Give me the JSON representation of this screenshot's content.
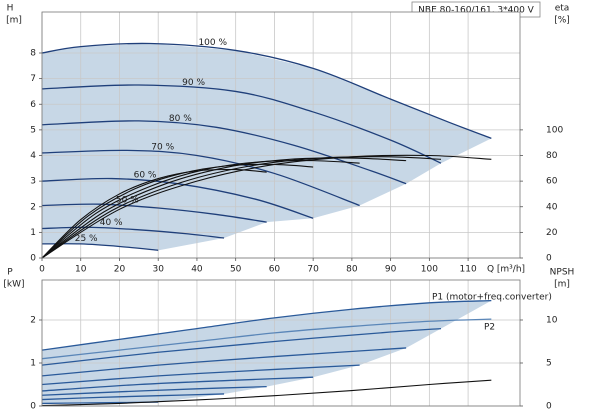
{
  "chart_data": [
    {
      "type": "line",
      "title": "NBE 80-160/161, 3*400 V",
      "ylabel": "H",
      "yunit": "[m]",
      "y2label": "eta",
      "y2unit": "[%]",
      "xlabel": "Q [m³/h]",
      "xlim": [
        0,
        123.4
      ],
      "xticks": [
        0,
        10,
        20,
        30,
        40,
        50,
        60,
        70,
        80,
        90,
        100,
        110
      ],
      "ylim": [
        0,
        9.6
      ],
      "yticks": [
        0,
        1,
        2,
        3,
        4,
        5,
        6,
        7,
        8
      ],
      "y2lim": [
        0,
        192
      ],
      "y2ticks": [
        0,
        20,
        40,
        60,
        80,
        100
      ],
      "grid": true,
      "envelope": [
        0,
        1,
        2,
        3,
        4,
        5,
        6,
        7
      ],
      "envelope_color": "#c7d7e6",
      "series": [
        {
          "name": "100 %",
          "color": "#1f3f7a",
          "x": [
            0,
            10,
            28,
            50,
            70,
            90,
            105,
            116
          ],
          "values": [
            8.0,
            8.25,
            8.37,
            8.1,
            7.4,
            6.2,
            5.3,
            4.67
          ]
        },
        {
          "name": "90 %",
          "color": "#1f3f7a",
          "x": [
            0,
            25,
            50,
            70,
            90,
            103
          ],
          "values": [
            6.6,
            6.75,
            6.5,
            5.7,
            4.6,
            3.7
          ]
        },
        {
          "name": "80 %",
          "color": "#1f3f7a",
          "x": [
            0,
            25,
            45,
            65,
            85,
            94
          ],
          "values": [
            5.2,
            5.35,
            5.1,
            4.4,
            3.4,
            2.9
          ]
        },
        {
          "name": "70 %",
          "color": "#1f3f7a",
          "x": [
            0,
            22,
            40,
            60,
            82
          ],
          "values": [
            4.1,
            4.2,
            4.0,
            3.3,
            2.05
          ]
        },
        {
          "name": "60 %",
          "color": "#1f3f7a",
          "x": [
            0,
            18,
            35,
            55,
            70
          ],
          "values": [
            3.0,
            3.1,
            2.9,
            2.3,
            1.55
          ]
        },
        {
          "name": "50 %",
          "color": "#1f3f7a",
          "x": [
            0,
            15,
            30,
            45,
            58
          ],
          "values": [
            2.05,
            2.1,
            1.95,
            1.7,
            1.4
          ]
        },
        {
          "name": "40 %",
          "color": "#1f3f7a",
          "x": [
            0,
            12,
            25,
            37,
            47
          ],
          "values": [
            1.15,
            1.2,
            1.1,
            0.95,
            0.78
          ]
        },
        {
          "name": "25 %",
          "color": "#1f3f7a",
          "x": [
            0,
            10,
            20,
            30
          ],
          "values": [
            0.55,
            0.55,
            0.45,
            0.3
          ]
        },
        {
          "color": "#111111",
          "axis": "y2",
          "x": [
            0,
            20,
            40,
            60,
            80,
            100,
            116
          ],
          "values": [
            0,
            38,
            60,
            73,
            79,
            80,
            77
          ]
        },
        {
          "color": "#111111",
          "axis": "y2",
          "x": [
            0,
            18,
            36,
            54,
            72,
            90,
            103
          ],
          "values": [
            0,
            37,
            59,
            72,
            78,
            79,
            77
          ]
        },
        {
          "color": "#111111",
          "axis": "y2",
          "x": [
            0,
            16,
            32,
            48,
            64,
            80,
            94
          ],
          "values": [
            0,
            36,
            58,
            71,
            77,
            78,
            76
          ]
        },
        {
          "color": "#111111",
          "axis": "y2",
          "x": [
            0,
            14,
            28,
            42,
            56,
            70,
            82
          ],
          "values": [
            0,
            35,
            56,
            69,
            75,
            76,
            74
          ]
        },
        {
          "color": "#111111",
          "axis": "y2",
          "x": [
            0,
            12,
            24,
            36,
            48,
            60,
            70
          ],
          "values": [
            0,
            33,
            54,
            66,
            72,
            73,
            71
          ]
        },
        {
          "color": "#111111",
          "axis": "y2",
          "x": [
            0,
            10,
            20,
            30,
            40,
            50,
            58
          ],
          "values": [
            0,
            30,
            50,
            62,
            68,
            69,
            67
          ]
        }
      ]
    },
    {
      "type": "line",
      "ylabel": "P",
      "yunit": "[kW]",
      "y2label": "NPSH",
      "y2unit": "[m]",
      "xlim": [
        0,
        123.4
      ],
      "ylim": [
        0,
        2.93
      ],
      "yticks": [
        0,
        1,
        2
      ],
      "y2lim": [
        0,
        14.65
      ],
      "y2ticks": [
        0,
        5,
        10
      ],
      "grid": true,
      "envelope": [
        0,
        1,
        2,
        3,
        4,
        5,
        6,
        7
      ],
      "envelope_color": "#c7d7e6",
      "annotations": [
        "P1 (motor+freq.converter)",
        "P2"
      ],
      "annotation_color": "#2a5a9a",
      "series": [
        {
          "color": "#2a5a9a",
          "x": [
            0,
            20,
            40,
            60,
            80,
            100,
            116
          ],
          "values": [
            1.3,
            1.55,
            1.8,
            2.05,
            2.25,
            2.4,
            2.45
          ]
        },
        {
          "color": "#2a5a9a",
          "x": [
            0,
            30,
            60,
            90,
            103
          ],
          "values": [
            0.95,
            1.25,
            1.5,
            1.72,
            1.8
          ]
        },
        {
          "color": "#2a5a9a",
          "x": [
            0,
            30,
            60,
            94
          ],
          "values": [
            0.7,
            0.95,
            1.15,
            1.35
          ]
        },
        {
          "color": "#2a5a9a",
          "x": [
            0,
            30,
            60,
            82
          ],
          "values": [
            0.5,
            0.7,
            0.85,
            0.95
          ]
        },
        {
          "color": "#2a5a9a",
          "x": [
            0,
            25,
            50,
            70
          ],
          "values": [
            0.35,
            0.5,
            0.6,
            0.67
          ]
        },
        {
          "color": "#2a5a9a",
          "x": [
            0,
            20,
            40,
            58
          ],
          "values": [
            0.25,
            0.33,
            0.4,
            0.45
          ]
        },
        {
          "color": "#2a5a9a",
          "x": [
            0,
            15,
            30,
            47
          ],
          "values": [
            0.15,
            0.2,
            0.24,
            0.28
          ]
        },
        {
          "color": "#2a5a9a",
          "x": [
            0,
            10,
            20,
            30
          ],
          "values": [
            0.06,
            0.07,
            0.08,
            0.09
          ]
        },
        {
          "color": "#5a86b8",
          "x": [
            0,
            20,
            40,
            60,
            80,
            100,
            116
          ],
          "values": [
            1.1,
            1.3,
            1.5,
            1.7,
            1.85,
            1.97,
            2.02
          ]
        },
        {
          "color": "#111111",
          "axis": "y2",
          "x": [
            0,
            20,
            40,
            60,
            80,
            100,
            116
          ],
          "values": [
            0.05,
            0.3,
            0.7,
            1.2,
            1.8,
            2.5,
            3.0
          ]
        }
      ]
    }
  ]
}
